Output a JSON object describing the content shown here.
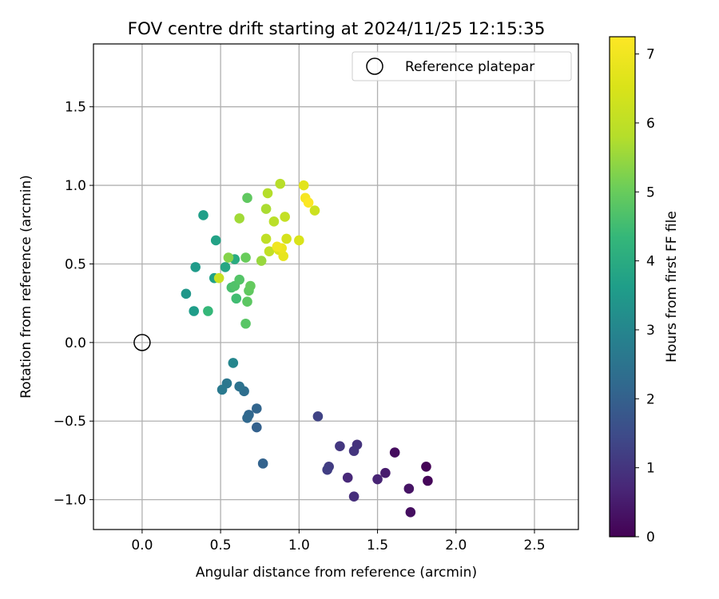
{
  "chart_data": {
    "type": "scatter",
    "title": "FOV centre drift starting at 2024/11/25 12:15:35",
    "xlabel": "Angular distance from reference (arcmin)",
    "ylabel": "Rotation from reference (arcmin)",
    "xlim": [
      -0.31,
      2.78
    ],
    "ylim": [
      -1.19,
      1.9
    ],
    "xticks": [
      0.0,
      0.5,
      1.0,
      1.5,
      2.0,
      2.5
    ],
    "xtick_labels": [
      "0.0",
      "0.5",
      "1.0",
      "1.5",
      "2.0",
      "2.5"
    ],
    "yticks": [
      -1.0,
      -0.5,
      0.0,
      0.5,
      1.0,
      1.5
    ],
    "ytick_labels": [
      "−1.0",
      "−0.5",
      "0.0",
      "0.5",
      "1.0",
      "1.5"
    ],
    "grid": true,
    "legend": {
      "position": "top-right",
      "entries": [
        "Reference platepar"
      ]
    },
    "reference_point": {
      "x": 0.0,
      "y": 0.0,
      "label": "Reference platepar"
    },
    "colorbar": {
      "label": "Hours from first FF file",
      "colormap": "viridis",
      "range": [
        0,
        7.25
      ],
      "ticks": [
        0,
        1,
        2,
        3,
        4,
        5,
        6,
        7
      ],
      "tick_labels": [
        "0",
        "1",
        "2",
        "3",
        "4",
        "5",
        "6",
        "7"
      ]
    },
    "points": [
      {
        "x": 1.81,
        "y": -0.79,
        "c": 0.05
      },
      {
        "x": 1.82,
        "y": -0.88,
        "c": 0.1
      },
      {
        "x": 1.61,
        "y": -0.7,
        "c": 0.2
      },
      {
        "x": 1.71,
        "y": -1.08,
        "c": 0.25
      },
      {
        "x": 1.7,
        "y": -0.93,
        "c": 0.35
      },
      {
        "x": 1.55,
        "y": -0.83,
        "c": 0.5
      },
      {
        "x": 1.5,
        "y": -0.87,
        "c": 0.65
      },
      {
        "x": 1.31,
        "y": -0.86,
        "c": 0.75
      },
      {
        "x": 1.35,
        "y": -0.98,
        "c": 0.85
      },
      {
        "x": 1.37,
        "y": -0.65,
        "c": 0.95
      },
      {
        "x": 1.35,
        "y": -0.69,
        "c": 1.0
      },
      {
        "x": 1.26,
        "y": -0.66,
        "c": 1.05
      },
      {
        "x": 1.19,
        "y": -0.79,
        "c": 1.15
      },
      {
        "x": 1.18,
        "y": -0.81,
        "c": 1.2
      },
      {
        "x": 1.12,
        "y": -0.47,
        "c": 1.3
      },
      {
        "x": 0.77,
        "y": -0.77,
        "c": 2.05
      },
      {
        "x": 0.73,
        "y": -0.54,
        "c": 2.0
      },
      {
        "x": 0.73,
        "y": -0.42,
        "c": 2.1
      },
      {
        "x": 0.68,
        "y": -0.46,
        "c": 2.15
      },
      {
        "x": 0.67,
        "y": -0.48,
        "c": 2.2
      },
      {
        "x": 0.65,
        "y": -0.31,
        "c": 2.35
      },
      {
        "x": 0.62,
        "y": -0.28,
        "c": 2.45
      },
      {
        "x": 0.54,
        "y": -0.26,
        "c": 2.6
      },
      {
        "x": 0.51,
        "y": -0.3,
        "c": 2.65
      },
      {
        "x": 0.58,
        "y": -0.13,
        "c": 3.0
      },
      {
        "x": 0.28,
        "y": 0.31,
        "c": 3.45
      },
      {
        "x": 0.33,
        "y": 0.2,
        "c": 3.6
      },
      {
        "x": 0.34,
        "y": 0.48,
        "c": 3.55
      },
      {
        "x": 0.39,
        "y": 0.81,
        "c": 3.65
      },
      {
        "x": 0.46,
        "y": 0.41,
        "c": 3.7
      },
      {
        "x": 0.47,
        "y": 0.65,
        "c": 3.75
      },
      {
        "x": 0.53,
        "y": 0.48,
        "c": 3.85
      },
      {
        "x": 0.59,
        "y": 0.53,
        "c": 4.0
      },
      {
        "x": 0.42,
        "y": 0.2,
        "c": 4.35
      },
      {
        "x": 0.6,
        "y": 0.28,
        "c": 4.5
      },
      {
        "x": 0.57,
        "y": 0.35,
        "c": 4.6
      },
      {
        "x": 0.59,
        "y": 0.36,
        "c": 4.7
      },
      {
        "x": 0.62,
        "y": 0.4,
        "c": 4.75
      },
      {
        "x": 0.66,
        "y": 0.12,
        "c": 4.8
      },
      {
        "x": 0.67,
        "y": 0.26,
        "c": 4.85
      },
      {
        "x": 0.68,
        "y": 0.33,
        "c": 4.9
      },
      {
        "x": 0.69,
        "y": 0.36,
        "c": 4.95
      },
      {
        "x": 0.66,
        "y": 0.54,
        "c": 5.0
      },
      {
        "x": 0.67,
        "y": 0.92,
        "c": 4.9
      },
      {
        "x": 0.55,
        "y": 0.54,
        "c": 5.3
      },
      {
        "x": 0.76,
        "y": 0.52,
        "c": 5.5
      },
      {
        "x": 0.62,
        "y": 0.79,
        "c": 5.6
      },
      {
        "x": 0.79,
        "y": 0.85,
        "c": 5.7
      },
      {
        "x": 0.8,
        "y": 0.95,
        "c": 5.8
      },
      {
        "x": 0.88,
        "y": 1.01,
        "c": 5.85
      },
      {
        "x": 0.84,
        "y": 0.77,
        "c": 5.9
      },
      {
        "x": 0.79,
        "y": 0.66,
        "c": 6.0
      },
      {
        "x": 0.81,
        "y": 0.58,
        "c": 6.05
      },
      {
        "x": 0.91,
        "y": 0.8,
        "c": 6.1
      },
      {
        "x": 0.49,
        "y": 0.41,
        "c": 6.2
      },
      {
        "x": 1.1,
        "y": 0.84,
        "c": 6.25
      },
      {
        "x": 0.92,
        "y": 0.66,
        "c": 6.4
      },
      {
        "x": 1.0,
        "y": 0.65,
        "c": 6.5
      },
      {
        "x": 0.87,
        "y": 0.59,
        "c": 6.6
      },
      {
        "x": 1.03,
        "y": 1.0,
        "c": 6.7
      },
      {
        "x": 0.9,
        "y": 0.55,
        "c": 6.8
      },
      {
        "x": 0.89,
        "y": 0.6,
        "c": 6.9
      },
      {
        "x": 0.86,
        "y": 0.61,
        "c": 7.0
      },
      {
        "x": 1.04,
        "y": 0.92,
        "c": 7.1
      },
      {
        "x": 1.06,
        "y": 0.89,
        "c": 7.2
      }
    ]
  }
}
